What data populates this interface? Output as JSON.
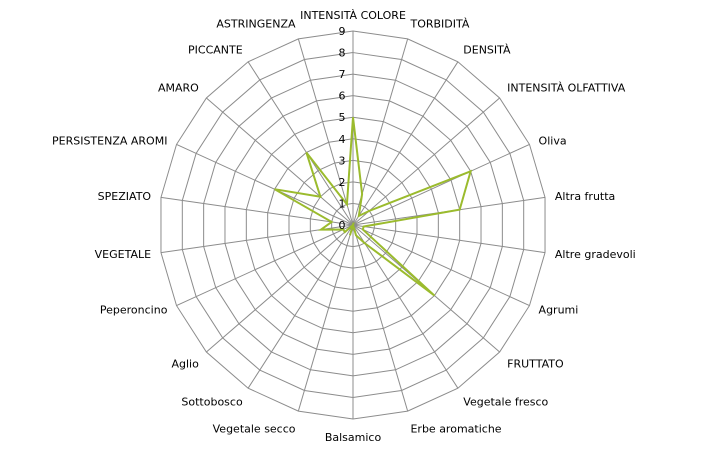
{
  "chart_data": {
    "type": "radar",
    "title": "",
    "axes": [
      "INTENSITÀ COLORE",
      "TORBIDITÀ",
      "DENSITÀ",
      "INTENSITÀ OLFATTIVA",
      "Oliva",
      "Altra frutta",
      "Altre gradevoli",
      "Agrumi",
      "FRUTTATO",
      "Vegetale fresco",
      "Erbe aromatiche",
      "Balsamico",
      "Vegetale secco",
      "Sottobosco",
      "Aglio",
      "Peperoncino",
      "VEGETALE",
      "SPEZIATO",
      "PERSISTENZA AROMI",
      "AMARO",
      "PICCANTE",
      "ASTRINGENZA"
    ],
    "rmin": 0,
    "rmax": 9,
    "ticks": [
      "0",
      "1",
      "2",
      "3",
      "4",
      "5",
      "6",
      "7",
      "8",
      "9"
    ],
    "grid": true,
    "legend": "none",
    "series": [
      {
        "values": [
          5,
          1.5,
          0.5,
          1,
          6,
          5,
          0.5,
          0.5,
          5,
          1,
          0.5,
          0,
          0.5,
          0,
          0.5,
          0.5,
          1.5,
          1,
          4,
          2,
          4,
          1
        ],
        "color": "#9bbb2d"
      }
    ]
  }
}
